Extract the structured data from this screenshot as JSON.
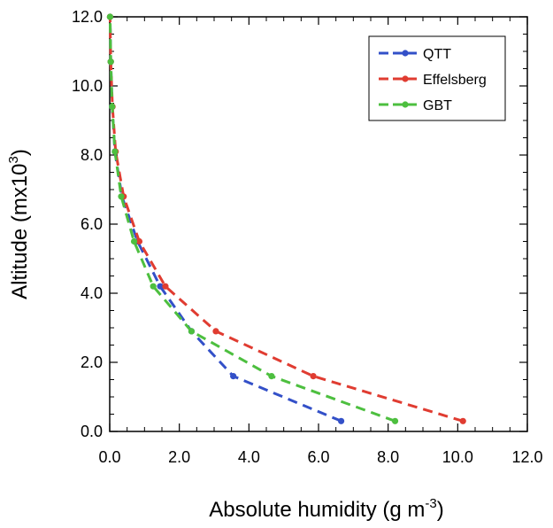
{
  "chart_data": {
    "type": "line",
    "title": "",
    "xlabel": "Absolute humidity (g m",
    "xlabel_sup": "-3",
    "xlabel_end": ")",
    "ylabel": "Altitude (mx10",
    "ylabel_sup": "3",
    "ylabel_end": ")",
    "xlim": [
      0,
      12
    ],
    "ylim": [
      0,
      12
    ],
    "x_ticks": [
      0,
      2,
      4,
      6,
      8,
      10,
      12
    ],
    "y_ticks": [
      0,
      2,
      4,
      6,
      8,
      10,
      12
    ],
    "x_tick_labels": [
      "0.0",
      "2.0",
      "4.0",
      "6.0",
      "8.0",
      "10.0",
      "12.0"
    ],
    "y_tick_labels": [
      "0.0",
      "2.0",
      "4.0",
      "6.0",
      "8.0",
      "10.0",
      "12.0"
    ],
    "grid": false,
    "legend_position": "top-right",
    "line_style": "dashed",
    "series": [
      {
        "name": "QTT",
        "color": "#3350c8",
        "points": [
          [
            6.65,
            0.3
          ],
          [
            3.55,
            1.6
          ],
          [
            2.35,
            2.9
          ],
          [
            1.45,
            4.2
          ],
          [
            0.8,
            5.5
          ],
          [
            0.35,
            6.8
          ],
          [
            0.15,
            8.1
          ],
          [
            0.07,
            9.4
          ],
          [
            0.03,
            10.7
          ],
          [
            0.01,
            12.0
          ]
        ]
      },
      {
        "name": "Effelsberg",
        "color": "#e03c31",
        "points": [
          [
            10.15,
            0.3
          ],
          [
            5.85,
            1.6
          ],
          [
            3.05,
            2.9
          ],
          [
            1.6,
            4.2
          ],
          [
            0.85,
            5.5
          ],
          [
            0.4,
            6.8
          ],
          [
            0.17,
            8.1
          ],
          [
            0.08,
            9.4
          ],
          [
            0.03,
            10.7
          ],
          [
            0.01,
            12.0
          ]
        ]
      },
      {
        "name": "GBT",
        "color": "#4dbf3f",
        "points": [
          [
            8.2,
            0.3
          ],
          [
            4.65,
            1.6
          ],
          [
            2.35,
            2.9
          ],
          [
            1.25,
            4.2
          ],
          [
            0.7,
            5.5
          ],
          [
            0.33,
            6.8
          ],
          [
            0.15,
            8.1
          ],
          [
            0.07,
            9.4
          ],
          [
            0.03,
            10.7
          ],
          [
            0.01,
            12.0
          ]
        ]
      }
    ]
  }
}
